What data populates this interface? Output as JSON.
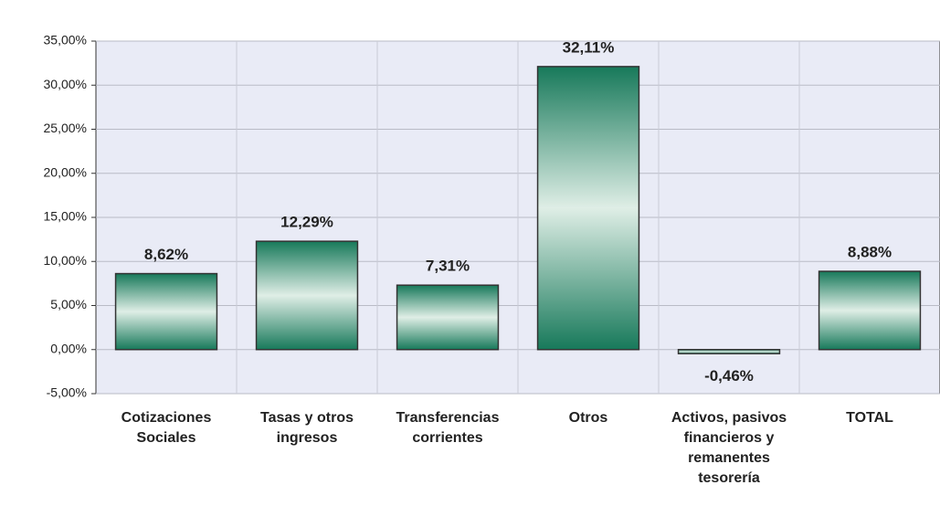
{
  "chart_data": {
    "type": "bar",
    "categories": [
      "Cotizaciones Sociales",
      "Tasas y otros ingresos",
      "Transferencias corrientes",
      "Otros",
      "Activos, pasivos financieros y remanentes tesorería",
      "TOTAL"
    ],
    "values": [
      8.62,
      12.29,
      7.31,
      32.11,
      -0.46,
      8.88
    ],
    "value_labels": [
      "8,62%",
      "12,29%",
      "7,31%",
      "32,11%",
      "-0,46%",
      "8,88%"
    ],
    "color": "#17795a",
    "ylim": [
      -5,
      35
    ],
    "yticks": [
      {
        "value": -5,
        "label": "-5,00%"
      },
      {
        "value": 0,
        "label": "0,00%"
      },
      {
        "value": 5,
        "label": "5,00%"
      },
      {
        "value": 10,
        "label": "10,00%"
      },
      {
        "value": 15,
        "label": "15,00%"
      },
      {
        "value": 20,
        "label": "20,00%"
      },
      {
        "value": 25,
        "label": "25,00%"
      },
      {
        "value": 30,
        "label": "30,00%"
      },
      {
        "value": 35,
        "label": "35,00%"
      }
    ],
    "grid": true
  }
}
